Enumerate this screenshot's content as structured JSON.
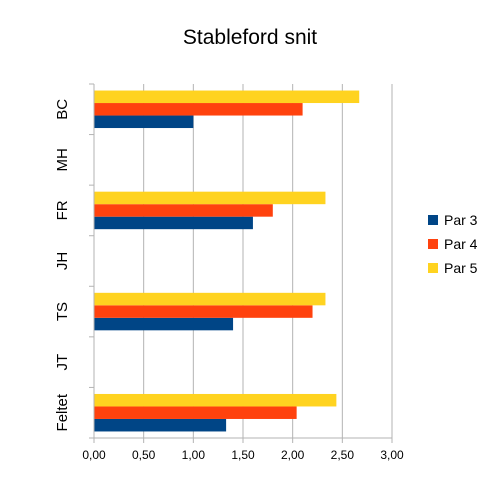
{
  "chart_data": {
    "type": "bar",
    "orientation": "horizontal",
    "title": "Stableford snit",
    "categories": [
      "BC",
      "MH",
      "FR",
      "JH",
      "TS",
      "JT",
      "Feltet"
    ],
    "series": [
      {
        "name": "Par 3",
        "color": "#004586",
        "values": [
          1.0,
          null,
          1.6,
          null,
          1.4,
          null,
          1.33
        ]
      },
      {
        "name": "Par 4",
        "color": "#ff420e",
        "values": [
          2.1,
          null,
          1.8,
          null,
          2.2,
          null,
          2.04
        ]
      },
      {
        "name": "Par 5",
        "color": "#ffd320",
        "values": [
          2.67,
          null,
          2.33,
          null,
          2.33,
          null,
          2.44
        ]
      }
    ],
    "xlim": [
      0,
      3
    ],
    "x_ticks": [
      "0,00",
      "0,50",
      "1,00",
      "1,50",
      "2,00",
      "2,50",
      "3,00"
    ],
    "x_tick_values": [
      0,
      0.5,
      1,
      1.5,
      2,
      2.5,
      3
    ],
    "grid": true,
    "legend_position": "right"
  }
}
